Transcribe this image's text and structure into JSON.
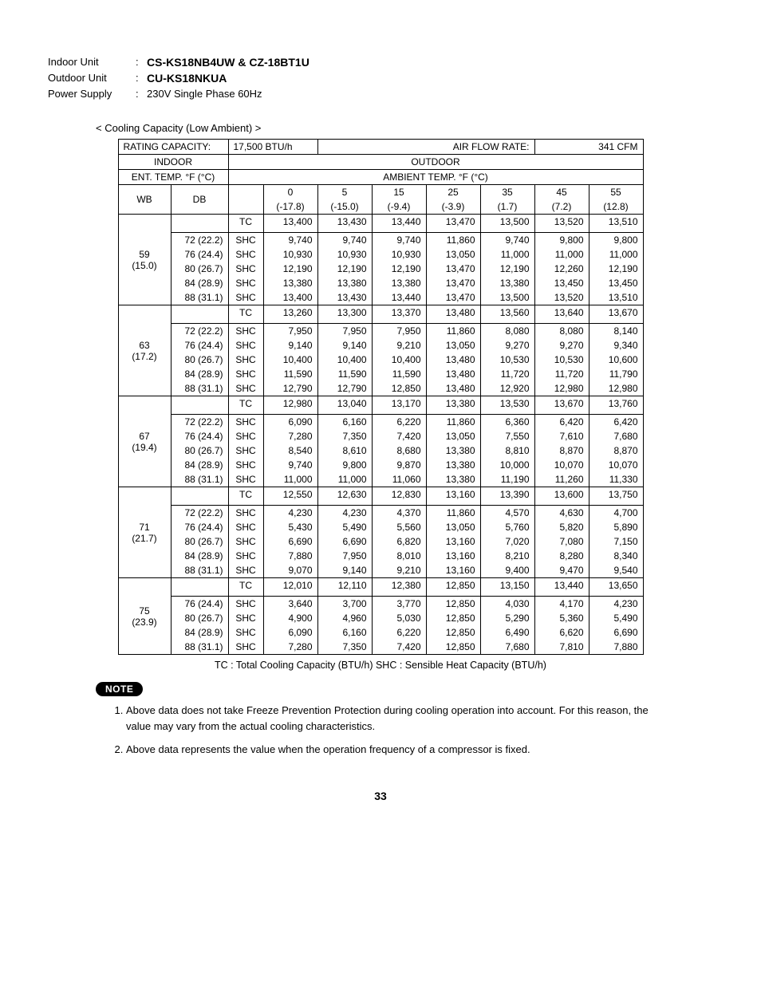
{
  "header": {
    "indoor_label": "Indoor Unit",
    "indoor_value": "CS-KS18NB4UW & CZ-18BT1U",
    "outdoor_label": "Outdoor Unit",
    "outdoor_value": "CU-KS18NKUA",
    "power_label": "Power Supply",
    "power_value": "230V Single Phase 60Hz"
  },
  "section_title": "< Cooling Capacity (Low Ambient) >",
  "rating_label": "RATING CAPACITY:",
  "rating_value": "17,500 BTU/h",
  "airflow_label": "AIR FLOW RATE:",
  "airflow_value": "341 CFM",
  "indoor_hdr": "INDOOR",
  "outdoor_hdr": "OUTDOOR",
  "ent_temp": "ENT. TEMP. °F (°C)",
  "ambient_temp": "AMBIENT TEMP. °F (°C)",
  "wb": "WB",
  "db": "DB",
  "ambient_f": [
    "0",
    "5",
    "15",
    "25",
    "35",
    "45",
    "55"
  ],
  "ambient_c": [
    "(-17.8)",
    "(-15.0)",
    "(-9.4)",
    "(-3.9)",
    "(1.7)",
    "(7.2)",
    "(12.8)"
  ],
  "groups": [
    {
      "wb": "59\n(15.0)",
      "dbs": [
        "72 (22.2)",
        "76 (24.4)",
        "80 (26.7)",
        "84 (28.9)",
        "88 (31.1)"
      ],
      "tc": [
        "13,400",
        "13,430",
        "13,440",
        "13,470",
        "13,500",
        "13,520",
        "13,510"
      ],
      "shc": [
        [
          "9,740",
          "9,740",
          "9,740",
          "11,860",
          "9,740",
          "9,800",
          "9,800"
        ],
        [
          "10,930",
          "10,930",
          "10,930",
          "13,050",
          "11,000",
          "11,000",
          "11,000"
        ],
        [
          "12,190",
          "12,190",
          "12,190",
          "13,470",
          "12,190",
          "12,260",
          "12,190"
        ],
        [
          "13,380",
          "13,380",
          "13,380",
          "13,470",
          "13,380",
          "13,450",
          "13,450"
        ],
        [
          "13,400",
          "13,430",
          "13,440",
          "13,470",
          "13,500",
          "13,520",
          "13,510"
        ]
      ]
    },
    {
      "wb": "63\n(17.2)",
      "dbs": [
        "72 (22.2)",
        "76 (24.4)",
        "80 (26.7)",
        "84 (28.9)",
        "88 (31.1)"
      ],
      "tc": [
        "13,260",
        "13,300",
        "13,370",
        "13,480",
        "13,560",
        "13,640",
        "13,670"
      ],
      "shc": [
        [
          "7,950",
          "7,950",
          "7,950",
          "11,860",
          "8,080",
          "8,080",
          "8,140"
        ],
        [
          "9,140",
          "9,140",
          "9,210",
          "13,050",
          "9,270",
          "9,270",
          "9,340"
        ],
        [
          "10,400",
          "10,400",
          "10,400",
          "13,480",
          "10,530",
          "10,530",
          "10,600"
        ],
        [
          "11,590",
          "11,590",
          "11,590",
          "13,480",
          "11,720",
          "11,720",
          "11,790"
        ],
        [
          "12,790",
          "12,790",
          "12,850",
          "13,480",
          "12,920",
          "12,980",
          "12,980"
        ]
      ]
    },
    {
      "wb": "67\n(19.4)",
      "dbs": [
        "72 (22.2)",
        "76 (24.4)",
        "80 (26.7)",
        "84 (28.9)",
        "88 (31.1)"
      ],
      "tc": [
        "12,980",
        "13,040",
        "13,170",
        "13,380",
        "13,530",
        "13,670",
        "13,760"
      ],
      "shc": [
        [
          "6,090",
          "6,160",
          "6,220",
          "11,860",
          "6,360",
          "6,420",
          "6,420"
        ],
        [
          "7,280",
          "7,350",
          "7,420",
          "13,050",
          "7,550",
          "7,610",
          "7,680"
        ],
        [
          "8,540",
          "8,610",
          "8,680",
          "13,380",
          "8,810",
          "8,870",
          "8,870"
        ],
        [
          "9,740",
          "9,800",
          "9,870",
          "13,380",
          "10,000",
          "10,070",
          "10,070"
        ],
        [
          "11,000",
          "11,000",
          "11,060",
          "13,380",
          "11,190",
          "11,260",
          "11,330"
        ]
      ]
    },
    {
      "wb": "71\n(21.7)",
      "dbs": [
        "72 (22.2)",
        "76 (24.4)",
        "80 (26.7)",
        "84 (28.9)",
        "88 (31.1)"
      ],
      "tc": [
        "12,550",
        "12,630",
        "12,830",
        "13,160",
        "13,390",
        "13,600",
        "13,750"
      ],
      "shc": [
        [
          "4,230",
          "4,230",
          "4,370",
          "11,860",
          "4,570",
          "4,630",
          "4,700"
        ],
        [
          "5,430",
          "5,490",
          "5,560",
          "13,050",
          "5,760",
          "5,820",
          "5,890"
        ],
        [
          "6,690",
          "6,690",
          "6,820",
          "13,160",
          "7,020",
          "7,080",
          "7,150"
        ],
        [
          "7,880",
          "7,950",
          "8,010",
          "13,160",
          "8,210",
          "8,280",
          "8,340"
        ],
        [
          "9,070",
          "9,140",
          "9,210",
          "13,160",
          "9,400",
          "9,470",
          "9,540"
        ]
      ]
    },
    {
      "wb": "75\n(23.9)",
      "dbs": [
        "76 (24.4)",
        "80 (26.7)",
        "84 (28.9)",
        "88 (31.1)"
      ],
      "tc": [
        "12,010",
        "12,110",
        "12,380",
        "12,850",
        "13,150",
        "13,440",
        "13,650"
      ],
      "shc": [
        [
          "3,640",
          "3,700",
          "3,770",
          "12,850",
          "4,030",
          "4,170",
          "4,230"
        ],
        [
          "4,900",
          "4,960",
          "5,030",
          "12,850",
          "5,290",
          "5,360",
          "5,490"
        ],
        [
          "6,090",
          "6,160",
          "6,220",
          "12,850",
          "6,490",
          "6,620",
          "6,690"
        ],
        [
          "7,280",
          "7,350",
          "7,420",
          "12,850",
          "7,680",
          "7,810",
          "7,880"
        ]
      ]
    }
  ],
  "tc_label": "TC",
  "shc_label": "SHC",
  "legend": "TC : Total Cooling Capacity (BTU/h)   SHC : Sensible Heat Capacity (BTU/h)",
  "note_badge": "NOTE",
  "notes": [
    "Above data does not take Freeze Prevention Protection during cooling operation into account. For this reason, the value may vary from the actual cooling characteristics.",
    "Above data represents the value when the operation frequency of a compressor is fixed."
  ],
  "page_num": "33"
}
